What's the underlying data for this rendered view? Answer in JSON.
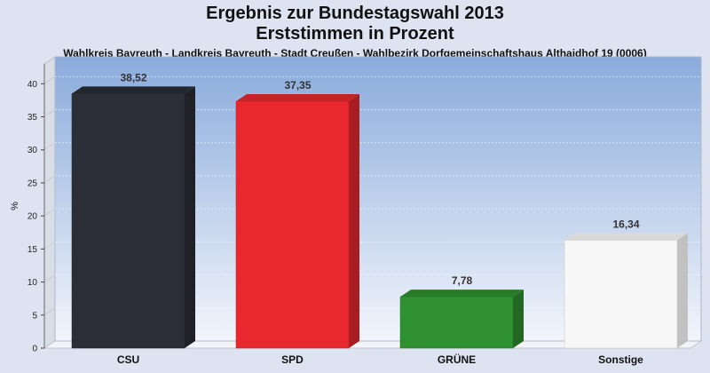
{
  "chart_data": {
    "type": "bar",
    "title": [
      "Ergebnis zur Bundestagswahl 2013",
      "Erststimmen in Prozent"
    ],
    "subtitle": "Wahlkreis Bayreuth - Landkreis Bayreuth - Stadt Creußen - Wahlbezirk Dorfgemeinschaftshaus Althaidhof 19 (0006)",
    "categories": [
      "CSU",
      "SPD",
      "GRÜNE",
      "Sonstige"
    ],
    "values": [
      38.52,
      37.35,
      7.78,
      16.34
    ],
    "value_labels": [
      "38,52",
      "37,35",
      "7,78",
      "16,34"
    ],
    "colors": [
      "#2b2e36",
      "#e8282e",
      "#2f9130",
      "#f7f7f7"
    ],
    "ylabel": "%",
    "xlabel": "",
    "ylim": [
      0,
      43
    ],
    "yticks": [
      0,
      5,
      10,
      15,
      20,
      25,
      30,
      35,
      40
    ],
    "grid": true
  }
}
